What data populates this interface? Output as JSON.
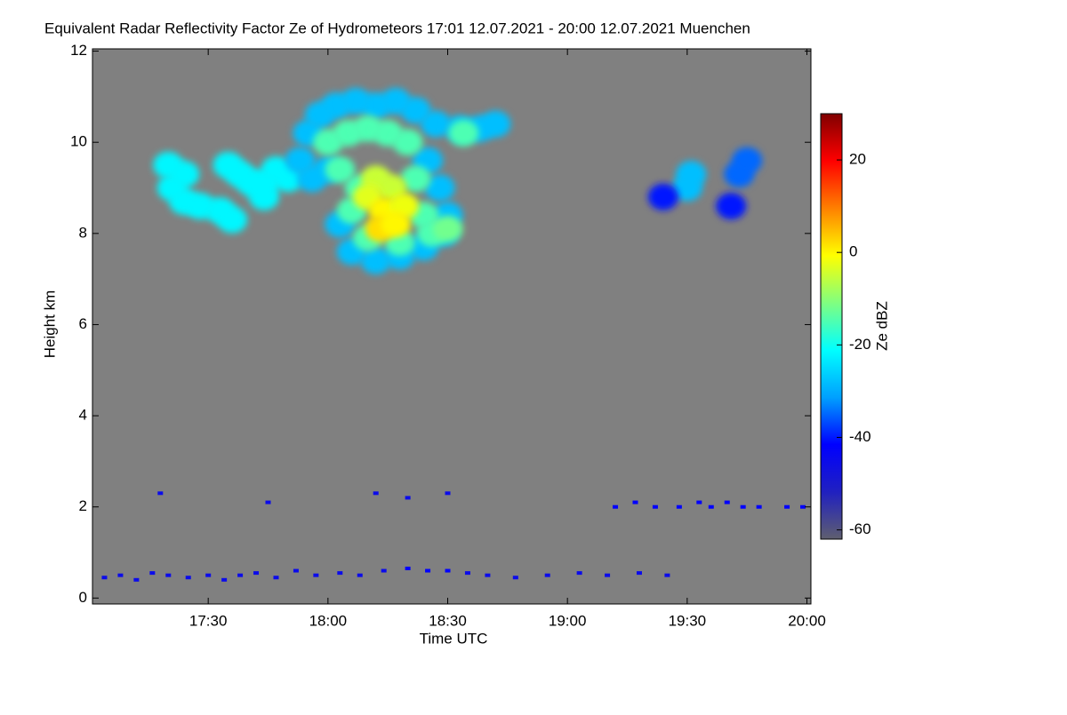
{
  "chart_data": {
    "type": "heatmap",
    "title": "Equivalent Radar Reflectivity Factor Ze of Hydrometeors   17:01 12.07.2021 - 20:00 12.07.2021 Muenchen",
    "xlabel": "Time UTC",
    "ylabel": "Height km",
    "colorbar_label": "Ze dBZ",
    "background": "#808080",
    "xlim": [
      "17:01",
      "20:01"
    ],
    "xticks": [
      "17:30",
      "18:00",
      "18:30",
      "19:00",
      "19:30",
      "20:00"
    ],
    "ylim": [
      -0.13,
      12.05
    ],
    "yticks": [
      0,
      2,
      4,
      6,
      8,
      10,
      12
    ],
    "zlim": [
      -62,
      30
    ],
    "zticks": [
      -60,
      -40,
      -20,
      0,
      20
    ],
    "colormap": [
      "#5f5f6f",
      "#2020c0",
      "#0000ff",
      "#00a0ff",
      "#00ffff",
      "#80ff80",
      "#ffff00",
      "#ff8000",
      "#ff0000",
      "#800000"
    ],
    "echo": {
      "time": [
        "17:04",
        "17:08",
        "17:12",
        "17:16",
        "17:20",
        "17:25",
        "17:30",
        "17:34",
        "17:38",
        "17:42",
        "17:47",
        "17:52",
        "17:57",
        "18:03",
        "18:08",
        "18:14",
        "18:20",
        "18:25",
        "18:30",
        "18:35",
        "18:40",
        "18:47",
        "18:55",
        "19:03",
        "19:10",
        "19:18",
        "19:25",
        "17:18",
        "17:45",
        "18:12",
        "18:20",
        "18:30",
        "19:12",
        "19:17",
        "19:22",
        "19:28",
        "19:33",
        "19:36",
        "19:40",
        "19:44",
        "19:48",
        "19:55",
        "19:59",
        "17:20",
        "17:21",
        "17:24",
        "17:28",
        "17:33",
        "17:36",
        "17:24",
        "17:35",
        "17:38",
        "17:41",
        "17:44",
        "17:47",
        "17:50",
        "17:44",
        "19:30",
        "19:31",
        "19:24",
        "19:41",
        "19:43",
        "19:45",
        "17:55",
        "17:58",
        "18:02",
        "18:07",
        "18:12",
        "18:17",
        "18:22",
        "18:27",
        "18:33",
        "18:38",
        "18:42",
        "17:53",
        "17:56",
        "18:00",
        "18:25",
        "18:28",
        "18:30",
        "18:06",
        "18:12",
        "18:18",
        "18:24",
        "18:03",
        "18:29",
        "18:00",
        "18:05",
        "18:10",
        "18:15",
        "18:20",
        "18:03",
        "18:08",
        "18:22",
        "18:06",
        "18:24",
        "18:10",
        "18:18",
        "18:26",
        "18:30",
        "18:34",
        "18:12",
        "18:16",
        "18:10",
        "18:14",
        "18:19",
        "18:13",
        "18:17"
      ],
      "height": [
        0.45,
        0.5,
        0.4,
        0.55,
        0.5,
        0.45,
        0.5,
        0.4,
        0.5,
        0.55,
        0.45,
        0.6,
        0.5,
        0.55,
        0.5,
        0.6,
        0.65,
        0.6,
        0.6,
        0.55,
        0.5,
        0.45,
        0.5,
        0.55,
        0.5,
        0.55,
        0.5,
        2.3,
        2.1,
        2.3,
        2.2,
        2.3,
        2.0,
        2.1,
        2.0,
        2.0,
        2.1,
        2.0,
        2.1,
        2.0,
        2.0,
        2.0,
        2.0,
        9.5,
        9.0,
        8.7,
        8.6,
        8.5,
        8.3,
        9.3,
        9.5,
        9.3,
        9.1,
        9.1,
        9.4,
        9.2,
        8.8,
        9.0,
        9.3,
        8.8,
        8.6,
        9.3,
        9.6,
        10.2,
        10.6,
        10.8,
        10.9,
        10.8,
        10.9,
        10.7,
        10.4,
        10.3,
        10.3,
        10.4,
        9.6,
        9.2,
        9.4,
        9.6,
        9.0,
        8.4,
        7.6,
        7.4,
        7.5,
        7.7,
        8.2,
        8.0,
        10.0,
        10.2,
        10.3,
        10.2,
        10.0,
        9.4,
        9.0,
        9.2,
        8.5,
        8.4,
        7.9,
        7.8,
        8.0,
        8.1,
        10.2,
        9.2,
        9.0,
        8.8,
        8.5,
        8.6,
        8.1,
        8.2
      ],
      "ze": [
        -45,
        -45,
        -45,
        -45,
        -45,
        -45,
        -45,
        -45,
        -45,
        -45,
        -45,
        -45,
        -45,
        -45,
        -45,
        -45,
        -42,
        -42,
        -42,
        -45,
        -45,
        -45,
        -45,
        -45,
        -45,
        -45,
        -45,
        -45,
        -45,
        -45,
        -45,
        -45,
        -42,
        -42,
        -42,
        -42,
        -42,
        -42,
        -42,
        -42,
        -42,
        -42,
        -42,
        -22,
        -22,
        -22,
        -22,
        -22,
        -22,
        -22,
        -22,
        -22,
        -22,
        -22,
        -22,
        -22,
        -22,
        -28,
        -28,
        -40,
        -40,
        -35,
        -35,
        -28,
        -28,
        -28,
        -28,
        -28,
        -28,
        -28,
        -28,
        -28,
        -28,
        -28,
        -28,
        -28,
        -28,
        -28,
        -28,
        -28,
        -28,
        -28,
        -28,
        -28,
        -28,
        -28,
        -15,
        -15,
        -15,
        -15,
        -15,
        -15,
        -15,
        -15,
        -15,
        -15,
        -15,
        -15,
        -15,
        -12,
        -15,
        -5,
        -5,
        -3,
        0,
        -2,
        2,
        0
      ]
    }
  }
}
